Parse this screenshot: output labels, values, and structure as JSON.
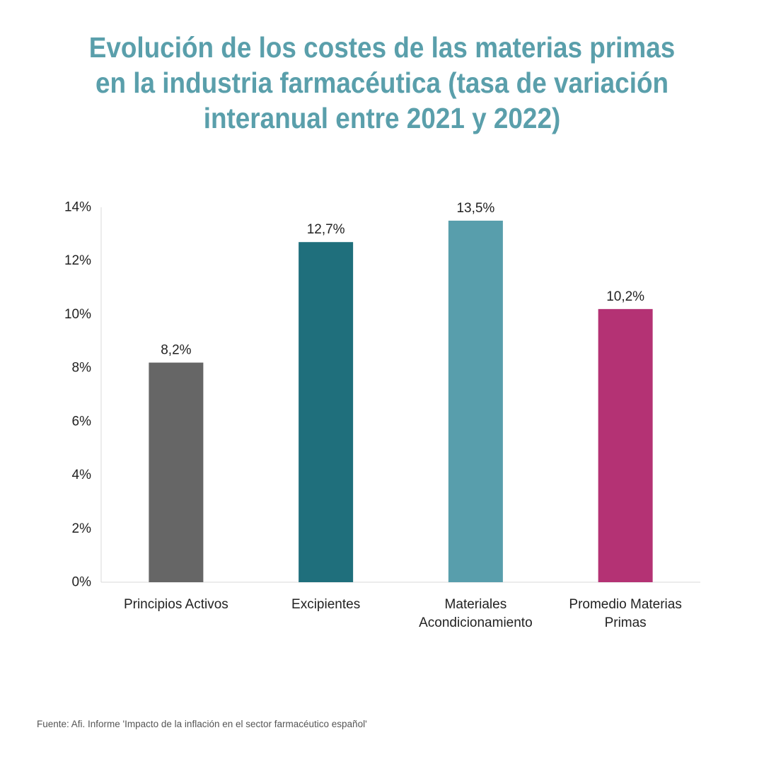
{
  "title_lines": [
    "Evolución de los costes de las materias primas",
    "en la industria farmacéutica (tasa de variación",
    "interanual entre 2021 y 2022)"
  ],
  "source": "Fuente: Afi. Informe 'Impacto de la inflación en el sector farmacéutico español'",
  "chart_data": {
    "type": "bar",
    "title": "Evolución de los costes de las materias primas en la industria farmacéutica (tasa de variación interanual entre 2021 y 2022)",
    "categories": [
      [
        "Principios Activos"
      ],
      [
        "Excipientes"
      ],
      [
        "Materiales",
        "Acondicionamiento"
      ],
      [
        "Promedio Materias",
        "Primas"
      ]
    ],
    "values": [
      8.2,
      12.7,
      13.5,
      10.2
    ],
    "value_labels": [
      "8,2%",
      "12,7%",
      "13,5%",
      "10,2%"
    ],
    "colors": [
      "#666666",
      "#1f6f7c",
      "#589eac",
      "#b43274"
    ],
    "ylim": [
      0,
      14
    ],
    "yticks": [
      0,
      2,
      4,
      6,
      8,
      10,
      12,
      14
    ],
    "ytick_labels": [
      "0%",
      "2%",
      "4%",
      "6%",
      "8%",
      "10%",
      "12%",
      "14%"
    ],
    "xlabel": "",
    "ylabel": "",
    "grid": false,
    "legend": "none"
  }
}
